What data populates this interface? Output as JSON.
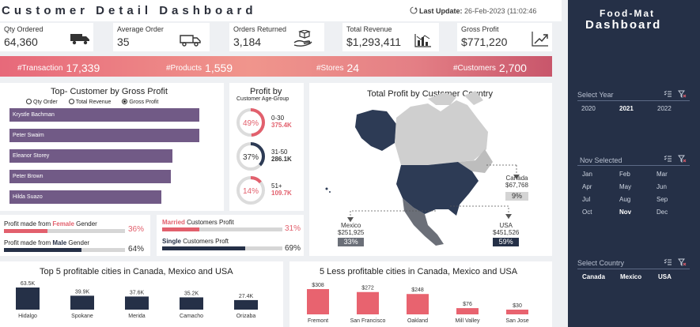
{
  "header": {
    "title": "Customer Detail Dashboard",
    "last_update_label": "Last Update:",
    "last_update_value": "26-Feb-2023 (11:02:46"
  },
  "kpis": [
    {
      "label": "Qty Ordered",
      "value": "64,360",
      "icon": "truck-icon"
    },
    {
      "label": "Average Order",
      "value": "35",
      "icon": "delivery-van-icon"
    },
    {
      "label": "Orders Returned",
      "value": "3,184",
      "icon": "hand-package-icon"
    },
    {
      "label": "Total Revenue",
      "value": "$1,293,411",
      "icon": "revenue-chart-icon"
    },
    {
      "label": "Gross Profit",
      "value": "$771,220",
      "icon": "growth-arrow-icon"
    }
  ],
  "banner": {
    "transaction_label": "#Transaction",
    "transaction_value": "17,339",
    "products_label": "#Products",
    "products_value": "1,559",
    "stores_label": "#Stores",
    "stores_value": "24",
    "customers_label": "#Customers",
    "customers_value": "2,700"
  },
  "top_customers": {
    "title": "Top- Customer by Gross Profit",
    "options": [
      "Qty Order",
      "Total Revenue",
      "Gross Profit"
    ],
    "selected": "Gross Profit",
    "chart_data": {
      "type": "bar",
      "categories": [
        "Krystle Bachman",
        "Peter Swaim",
        "Eleanor Storey",
        "Peter Brown",
        "Hilda Suazo"
      ],
      "values": [
        1.0,
        0.998,
        0.86,
        0.85,
        0.8
      ]
    }
  },
  "gender": {
    "female_pre": "Profit made from ",
    "female_word": "Female",
    "female_post": " Gender",
    "female_value": "36%",
    "female_fraction": 0.36,
    "male_pre": "Profit made from ",
    "male_word": "Male",
    "male_post": " Gender",
    "male_value": "64%",
    "male_fraction": 0.64
  },
  "marital": {
    "married_word": "Married",
    "married_post": " Customers Profit",
    "married_value": "31%",
    "married_fraction": 0.31,
    "single_word": "Single",
    "single_post": " Customers Proft",
    "single_value": "69%",
    "single_fraction": 0.69
  },
  "age_group": {
    "title": "Profit by",
    "subtitle": "Customer Age-Group",
    "groups": [
      {
        "range": "0-30",
        "value": "375.4K",
        "percent": "49%",
        "fraction": 0.49,
        "color": "#e2606d"
      },
      {
        "range": "31-50",
        "value": "286.1K",
        "percent": "37%",
        "fraction": 0.37,
        "color": "#2d3b55"
      },
      {
        "range": "51+",
        "value": "109.7K",
        "percent": "14%",
        "fraction": 0.14,
        "color": "#e2606d"
      }
    ]
  },
  "map": {
    "title": "Total Profit by Customer Country",
    "canada": {
      "name": "Canada",
      "value": "$67,768",
      "percent": "9%"
    },
    "mexico": {
      "name": "Mexico",
      "value": "$251,925",
      "percent": "33%"
    },
    "usa": {
      "name": "USA",
      "value": "$451,526",
      "percent": "59%"
    }
  },
  "top_cities": {
    "title": "Top 5 profitable cities in Canada, Mexico and  USA",
    "chart_data": {
      "type": "bar",
      "categories": [
        "Hidalgo",
        "Spokane",
        "Merida",
        "Camacho",
        "Orizaba"
      ],
      "values": [
        63.5,
        39.9,
        37.6,
        35.2,
        27.4
      ],
      "labels": [
        "63.5K",
        "39.9K",
        "37.6K",
        "35.2K",
        "27.4K"
      ],
      "color": "#253047"
    }
  },
  "less_cities": {
    "title": "5 Less profitable cities in Canada, Mexico and  USA",
    "chart_data": {
      "type": "bar",
      "categories": [
        "Fremont",
        "San Francisco",
        "Oakland",
        "Mill Valley",
        "San Jose"
      ],
      "values": [
        308,
        272,
        248,
        76,
        30
      ],
      "labels": [
        "$308",
        "$272",
        "$248",
        "$76",
        "$30"
      ],
      "color": "#e8636f"
    }
  },
  "sidebar": {
    "brand_top": "Food-Mat",
    "brand_bottom": "Dashboard",
    "year_label": "Select Year",
    "years": [
      "2020",
      "2021",
      "2022"
    ],
    "selected_year": "2021",
    "month_label": "Nov Selected",
    "months": [
      "Jan",
      "Feb",
      "Mar",
      "Apr",
      "May",
      "Jun",
      "Jul",
      "Aug",
      "Sep",
      "Oct",
      "Nov",
      "Dec"
    ],
    "selected_month": "Nov",
    "country_label": "Select Country",
    "countries": [
      "Canada",
      "Mexico",
      "USA"
    ]
  }
}
